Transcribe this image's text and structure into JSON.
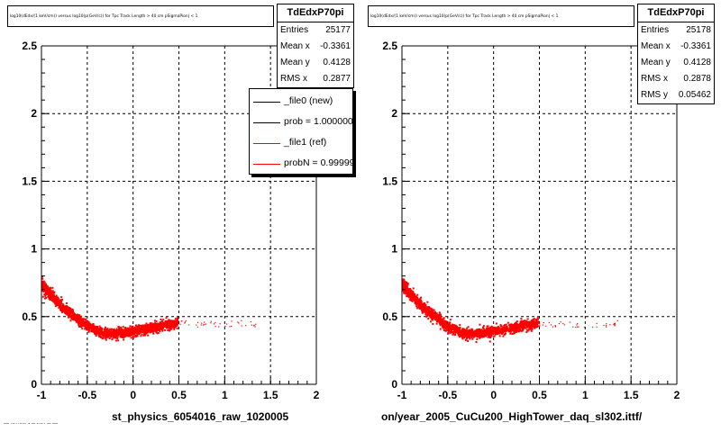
{
  "chart_data": [
    {
      "type": "scatter",
      "title": "log10(dEdx/(1 keV/cm)) versus log10(p(GeV/c)) for Tpc Track Length > 40 cm pSigmaPion| < 1",
      "xlabel": "st_physics_6054016_raw_1020005",
      "ylabel": "",
      "xlim": [
        -1,
        2
      ],
      "ylim": [
        0,
        2.5
      ],
      "x_ticks": [
        "-1",
        "-0.5",
        "0",
        "0.5",
        "1",
        "1.5",
        "2"
      ],
      "y_ticks": [
        "0",
        "0.5",
        "1",
        "1.5",
        "2",
        "2.5"
      ],
      "grid": true,
      "marker_color": "#ff0000",
      "series_curve": {
        "x": [
          -1.0,
          -0.9,
          -0.8,
          -0.7,
          -0.6,
          -0.5,
          -0.4,
          -0.3,
          -0.2,
          -0.1,
          0.0,
          0.1,
          0.2,
          0.3,
          0.4
        ],
        "y": [
          0.74,
          0.66,
          0.59,
          0.53,
          0.48,
          0.43,
          0.4,
          0.38,
          0.38,
          0.39,
          0.4,
          0.41,
          0.42,
          0.44,
          0.45
        ]
      },
      "stats": {
        "name": "TdEdxP70pi",
        "rows": [
          {
            "label": "Entries",
            "value": "25177"
          },
          {
            "label": "Mean x",
            "value": "-0.3361"
          },
          {
            "label": "Mean y",
            "value": "0.4128"
          },
          {
            "label": "RMS x",
            "value": "0.2877"
          }
        ]
      },
      "legend": {
        "placement": "top-right",
        "entries": [
          {
            "label": "_file0 (new)",
            "color": "#000000"
          },
          {
            "label": "prob = 1.000000",
            "color": "#000000"
          },
          {
            "label": "_file1 (ref)",
            "color": "#ff0000"
          },
          {
            "label": "probN = 0.999999",
            "color": "#ff0000"
          }
        ]
      }
    },
    {
      "type": "scatter",
      "title": "log10(dEdx/(1 keV/cm)) versus log10(p(GeV/c)) for Tpc Track Length > 40 cm pSigmaPion| < 1",
      "xlabel": "on/year_2005_CuCu200_HighTower_daq_sl302.ittf/",
      "ylabel": "",
      "xlim": [
        -1,
        2
      ],
      "ylim": [
        0,
        2.5
      ],
      "x_ticks": [
        "-1",
        "-0.5",
        "0",
        "0.5",
        "1",
        "1.5",
        "2"
      ],
      "y_ticks": [
        "0",
        "0.5",
        "1",
        "1.5",
        "2",
        "2.5"
      ],
      "grid": true,
      "marker_color": "#ff0000",
      "series_curve": {
        "x": [
          -1.0,
          -0.9,
          -0.8,
          -0.7,
          -0.6,
          -0.5,
          -0.4,
          -0.3,
          -0.2,
          -0.1,
          0.0,
          0.1,
          0.2,
          0.3,
          0.4
        ],
        "y": [
          0.74,
          0.66,
          0.59,
          0.53,
          0.48,
          0.43,
          0.4,
          0.38,
          0.38,
          0.39,
          0.4,
          0.41,
          0.42,
          0.44,
          0.45
        ]
      },
      "stats": {
        "name": "TdEdxP70pi",
        "rows": [
          {
            "label": "Entries",
            "value": "25178"
          },
          {
            "label": "Mean x",
            "value": "-0.3361"
          },
          {
            "label": "Mean y",
            "value": "0.4128"
          },
          {
            "label": "RMS x",
            "value": "0.2878"
          },
          {
            "label": "RMS y",
            "value": "0.05462"
          }
        ]
      }
    }
  ],
  "footer": "--- ·-···-·-· - -- -·-·· -- ---"
}
